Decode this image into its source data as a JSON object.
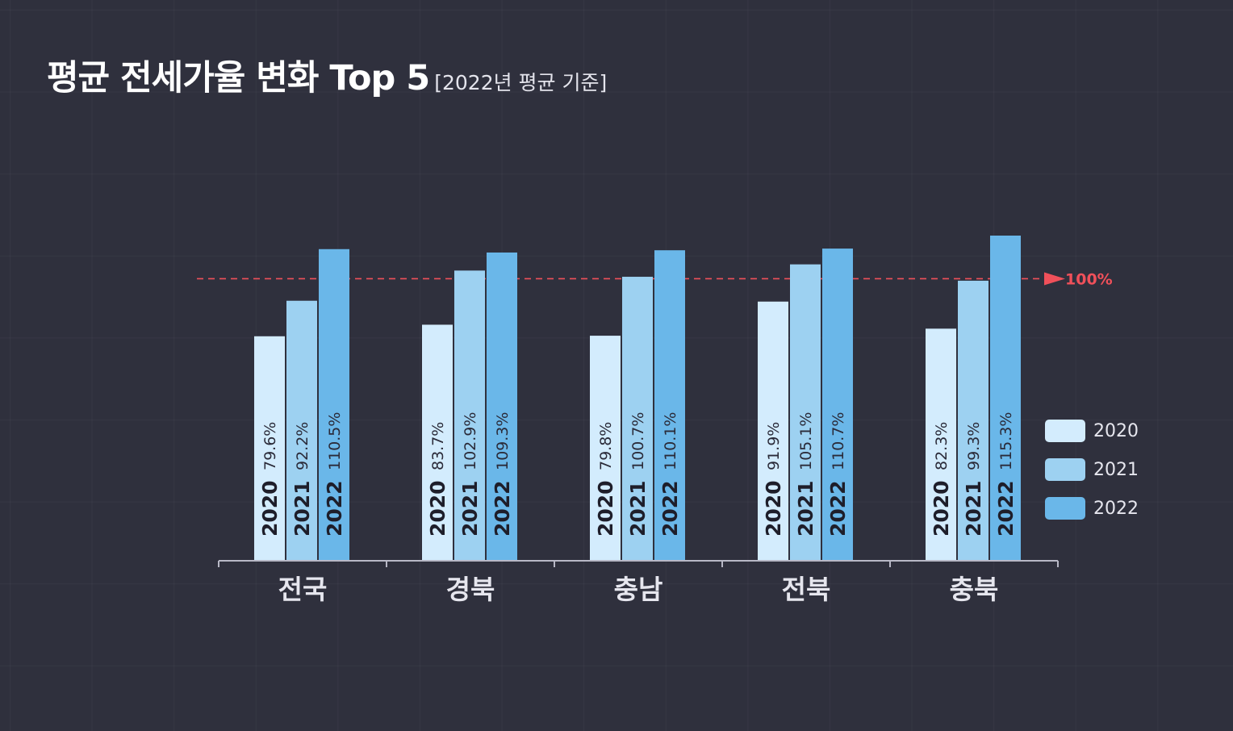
{
  "title": {
    "main": "평균 전세가율 변화 Top 5",
    "sub": "[2022년 평균 기준]"
  },
  "chart_data": {
    "type": "bar",
    "categories": [
      "전국",
      "경북",
      "충남",
      "전북",
      "충북"
    ],
    "series": [
      {
        "name": "2020",
        "values": [
          79.6,
          83.7,
          79.8,
          91.9,
          82.3
        ],
        "color": "#d3ecfd"
      },
      {
        "name": "2021",
        "values": [
          92.2,
          102.9,
          100.7,
          105.1,
          99.3
        ],
        "color": "#9dd1f1"
      },
      {
        "name": "2022",
        "values": [
          110.5,
          109.3,
          110.1,
          110.7,
          115.3
        ],
        "color": "#6ab7e9"
      }
    ],
    "value_labels": [
      [
        "79.6%",
        "83.7%",
        "79.8%",
        "91.9%",
        "82.3%"
      ],
      [
        "92.2%",
        "102.9%",
        "100.7%",
        "105.1%",
        "99.3%"
      ],
      [
        "110.5%",
        "109.3%",
        "110.1%",
        "110.7%",
        "115.3%"
      ]
    ],
    "reference_line": {
      "value": 100,
      "label": "100%",
      "color": "#f0505a"
    },
    "ylim": [
      0,
      115.3
    ],
    "legend": {
      "position": "right",
      "items": [
        "2020",
        "2021",
        "2022"
      ]
    },
    "grid": false
  }
}
